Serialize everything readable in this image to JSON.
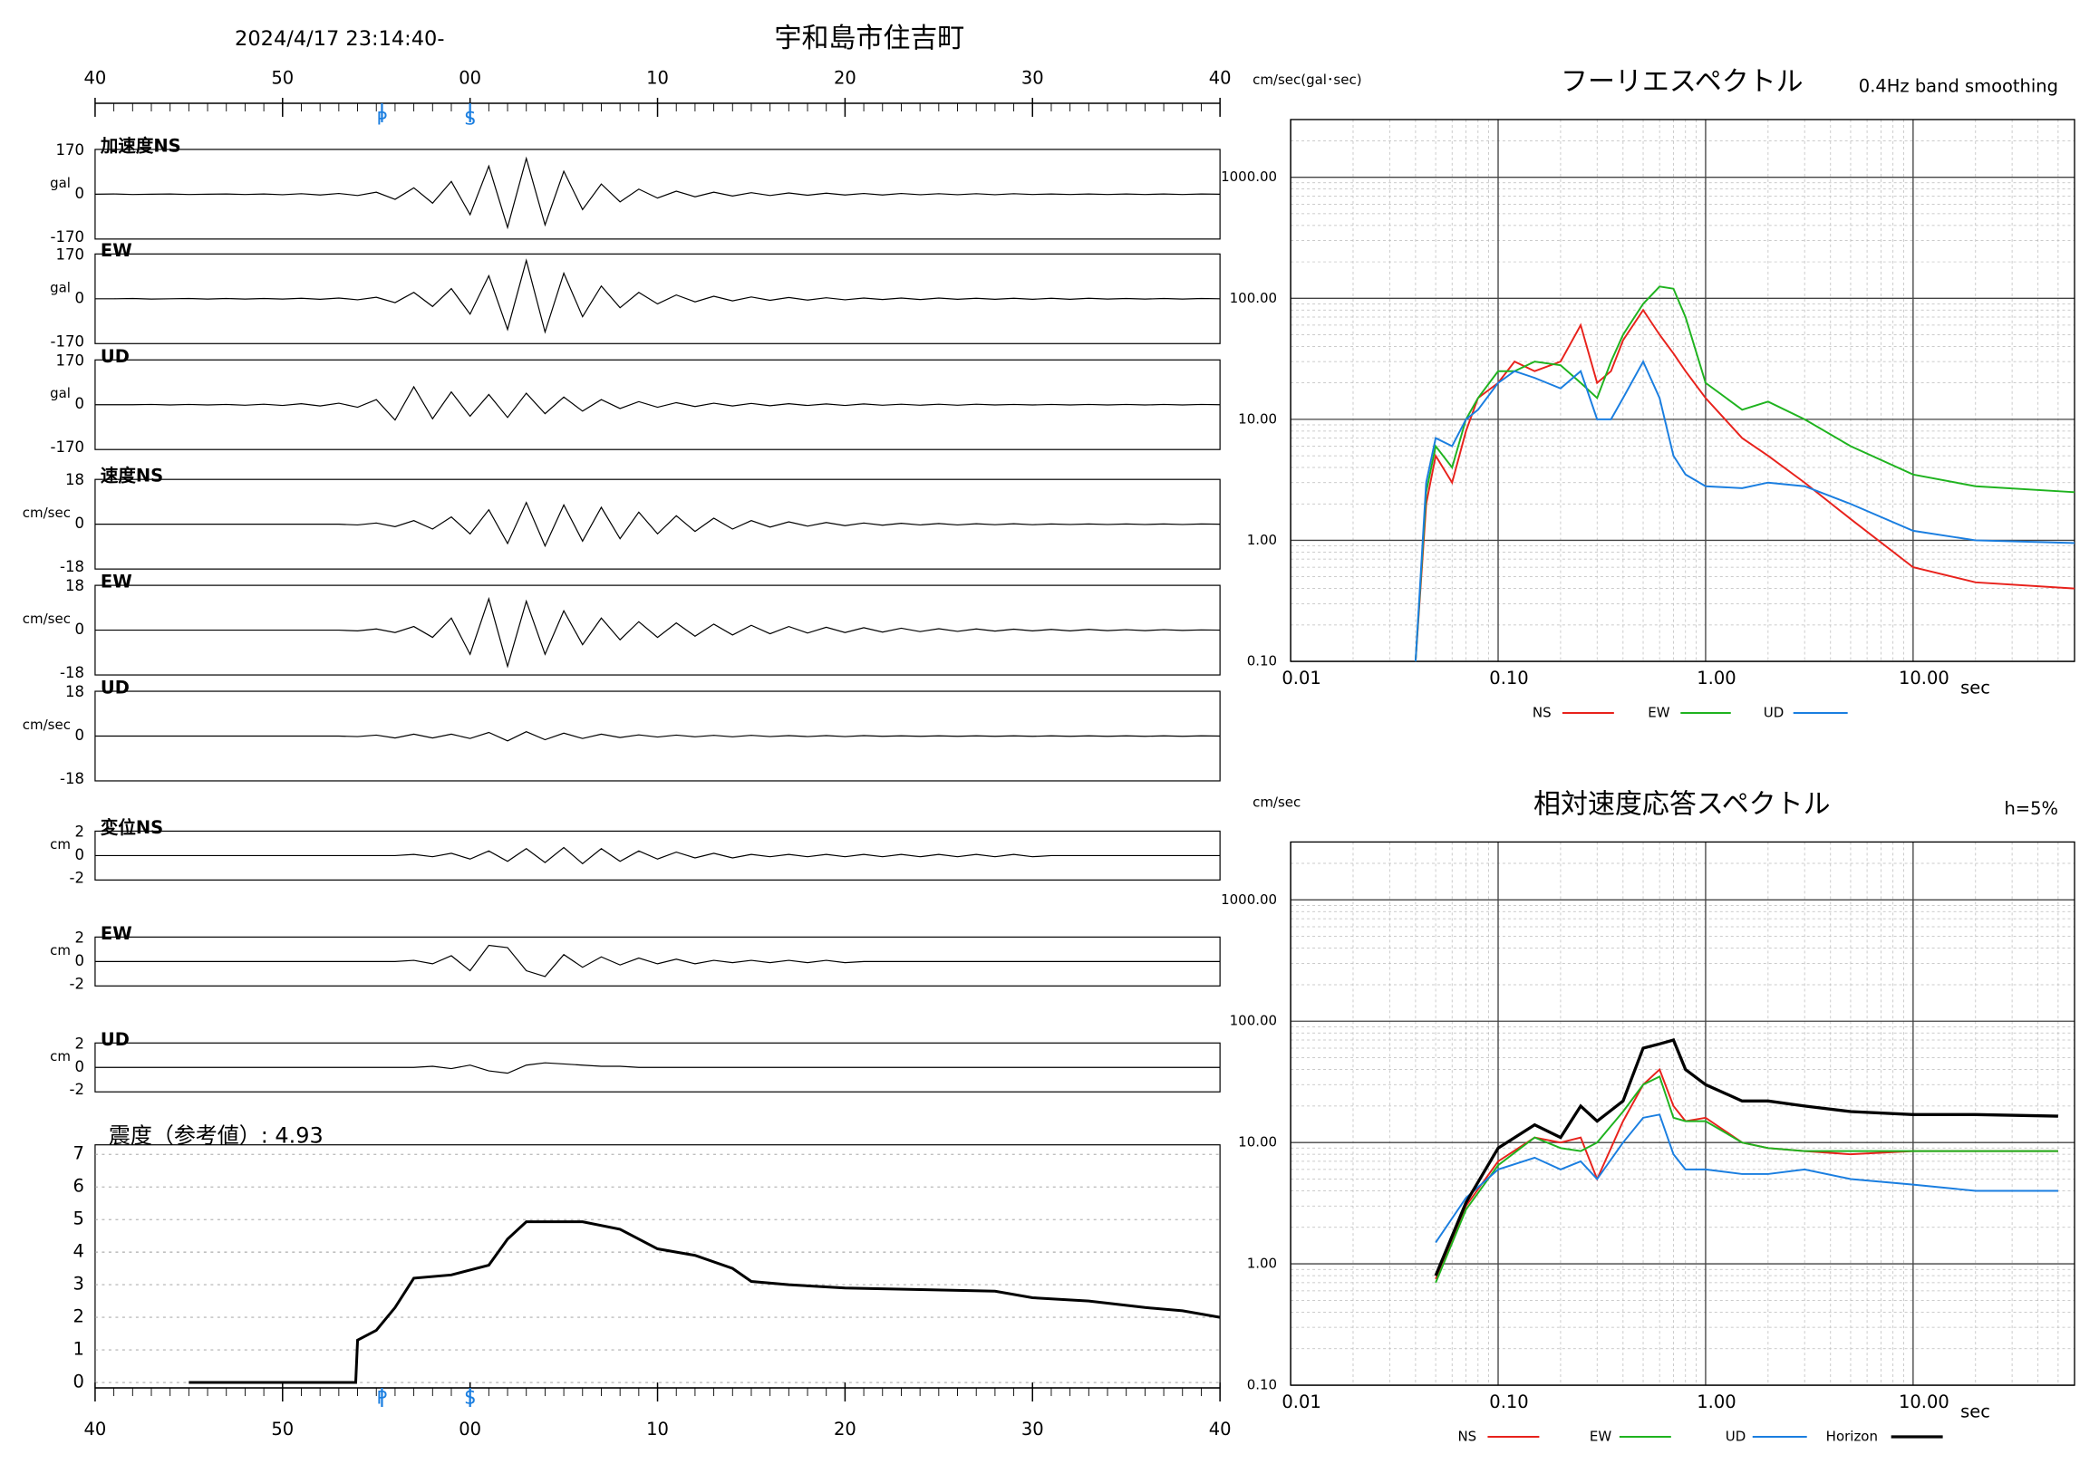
{
  "chart_data": [
    {
      "type": "waveform",
      "title": "宇和島市住吉町",
      "subtitle": "2024/4/17 23:14:40-",
      "xlim": [
        0,
        60
      ],
      "xticks": [
        {
          "value": 0,
          "label": "40"
        },
        {
          "value": 10,
          "label": "50"
        },
        {
          "value": 20,
          "label": "00"
        },
        {
          "value": 30,
          "label": "10"
        },
        {
          "value": 40,
          "label": "20"
        },
        {
          "value": 50,
          "label": "30"
        },
        {
          "value": 60,
          "label": "40"
        }
      ],
      "markers": [
        {
          "label": "P",
          "value": 15.3
        },
        {
          "label": "S",
          "value": 20
        }
      ],
      "x": [
        0,
        1,
        2,
        3,
        4,
        5,
        6,
        7,
        8,
        9,
        10,
        11,
        12,
        13,
        14,
        15,
        16,
        17,
        18,
        19,
        20,
        21,
        22,
        23,
        24,
        25,
        26,
        27,
        28,
        29,
        30,
        31,
        32,
        33,
        34,
        35,
        36,
        37,
        38,
        39,
        40,
        41,
        42,
        43,
        44,
        45,
        46,
        47,
        48,
        49,
        50,
        51,
        52,
        53,
        54,
        55,
        56,
        57,
        58,
        59,
        60
      ],
      "panels": [
        {
          "name": "加速度NS",
          "unit": "gal",
          "ylim": [
            -170,
            170
          ],
          "yticks": [
            -170,
            0,
            170
          ],
          "values": [
            0,
            1,
            -1,
            0,
            1,
            -1,
            0,
            1,
            -1,
            1,
            -2,
            2,
            -3,
            3,
            -5,
            8,
            -20,
            25,
            -35,
            50,
            -80,
            110,
            -130,
            140,
            -120,
            90,
            -60,
            40,
            -30,
            20,
            -15,
            12,
            -10,
            8,
            -7,
            6,
            -5,
            5,
            -4,
            4,
            -3,
            3,
            -3,
            3,
            -2,
            2,
            -2,
            2,
            -2,
            2,
            -1,
            1,
            -1,
            1,
            -1,
            1,
            -1,
            1,
            -1,
            1,
            0
          ]
        },
        {
          "name": "EW",
          "unit": "gal",
          "ylim": [
            -170,
            170
          ],
          "yticks": [
            -170,
            0,
            170
          ],
          "values": [
            0,
            0,
            1,
            -1,
            0,
            1,
            -1,
            1,
            -1,
            1,
            -1,
            2,
            -2,
            3,
            -4,
            6,
            -15,
            25,
            -30,
            40,
            -60,
            90,
            -120,
            150,
            -130,
            100,
            -70,
            50,
            -35,
            25,
            -20,
            15,
            -12,
            10,
            -8,
            7,
            -6,
            5,
            -5,
            4,
            -4,
            3,
            -3,
            3,
            -3,
            3,
            -2,
            2,
            -2,
            2,
            -2,
            2,
            -2,
            2,
            -1,
            1,
            -1,
            1,
            -1,
            1,
            0
          ]
        },
        {
          "name": "UD",
          "unit": "gal",
          "ylim": [
            -170,
            170
          ],
          "yticks": [
            -170,
            0,
            170
          ],
          "values": [
            0,
            0,
            0,
            1,
            -1,
            1,
            -1,
            1,
            -2,
            2,
            -3,
            4,
            -5,
            6,
            -10,
            20,
            -60,
            70,
            -55,
            50,
            -45,
            40,
            -50,
            45,
            -35,
            30,
            -25,
            20,
            -15,
            12,
            -10,
            8,
            -7,
            6,
            -5,
            5,
            -4,
            4,
            -3,
            3,
            -3,
            3,
            -2,
            2,
            -2,
            2,
            -2,
            2,
            -1,
            1,
            -1,
            1,
            -1,
            1,
            -1,
            1,
            -1,
            1,
            -1,
            1,
            0
          ]
        },
        {
          "name": "速度NS",
          "unit": "cm/sec",
          "ylim": [
            -18,
            18
          ],
          "yticks": [
            -18,
            0,
            18
          ],
          "values": [
            0,
            0,
            0,
            0,
            0,
            0,
            0,
            0,
            0,
            0,
            0,
            0,
            0,
            0,
            -0.3,
            0.5,
            -1,
            1.5,
            -2,
            3,
            -4,
            6,
            -8,
            9,
            -9,
            8,
            -7,
            7,
            -6,
            5,
            -4,
            3.5,
            -3,
            2.5,
            -2,
            1.5,
            -1.2,
            1,
            -0.8,
            0.7,
            -0.6,
            0.5,
            -0.4,
            0.4,
            -0.3,
            0.3,
            -0.3,
            0.2,
            -0.2,
            0.2,
            -0.2,
            0.1,
            -0.1,
            0.1,
            -0.1,
            0.1,
            -0.1,
            0.1,
            -0.1,
            0.1,
            0
          ]
        },
        {
          "name": "EW",
          "unit": "cm/sec",
          "ylim": [
            -18,
            18
          ],
          "yticks": [
            -18,
            0,
            18
          ],
          "values": [
            0,
            0,
            0,
            0,
            0,
            0,
            0,
            0,
            0,
            0,
            0,
            0,
            0,
            0,
            -0.3,
            0.5,
            -1,
            1.5,
            -3,
            5,
            -10,
            13,
            -15,
            12,
            -10,
            8,
            -6,
            5,
            -4,
            3.5,
            -3,
            3,
            -2.5,
            2.5,
            -2,
            2,
            -1.5,
            1.5,
            -1.2,
            1.2,
            -1,
            1,
            -0.8,
            0.8,
            -0.6,
            0.6,
            -0.5,
            0.5,
            -0.4,
            0.4,
            -0.3,
            0.3,
            -0.3,
            0.3,
            -0.2,
            0.2,
            -0.2,
            0.2,
            -0.1,
            0.1,
            0
          ]
        },
        {
          "name": "UD",
          "unit": "cm/sec",
          "ylim": [
            -18,
            18
          ],
          "yticks": [
            -18,
            0,
            18
          ],
          "values": [
            0,
            0,
            0,
            0,
            0,
            0,
            0,
            0,
            0,
            0,
            0,
            0,
            0,
            0,
            -0.2,
            0.4,
            -0.8,
            0.8,
            -0.8,
            0.8,
            -1,
            1.5,
            -2,
            1.8,
            -1.5,
            1.2,
            -1,
            0.8,
            -0.6,
            0.5,
            -0.4,
            0.4,
            -0.3,
            0.3,
            -0.3,
            0.3,
            -0.2,
            0.2,
            -0.2,
            0.2,
            -0.2,
            0.2,
            -0.1,
            0.1,
            -0.1,
            0.1,
            -0.1,
            0.1,
            -0.1,
            0.1,
            -0.1,
            0.1,
            -0.1,
            0.1,
            -0.1,
            0.1,
            -0.1,
            0.1,
            -0.1,
            0.1,
            0
          ]
        },
        {
          "name": "変位NS",
          "unit": "cm",
          "ylim": [
            -2,
            2
          ],
          "yticks": [
            -2,
            0,
            2
          ],
          "values": [
            0,
            0,
            0,
            0,
            0,
            0,
            0,
            0,
            0,
            0,
            0,
            0,
            0,
            0,
            0,
            0,
            0,
            0.1,
            -0.1,
            0.2,
            -0.3,
            0.4,
            -0.5,
            0.6,
            -0.6,
            0.7,
            -0.7,
            0.6,
            -0.5,
            0.4,
            -0.3,
            0.3,
            -0.2,
            0.2,
            -0.2,
            0.1,
            -0.1,
            0.1,
            -0.1,
            0.1,
            -0.1,
            0.1,
            -0.1,
            0.1,
            -0.1,
            0.1,
            -0.1,
            0.1,
            -0.1,
            0.1,
            -0.1,
            0,
            0,
            0,
            0,
            0,
            0,
            0,
            0,
            0,
            0
          ]
        },
        {
          "name": "EW",
          "unit": "cm",
          "ylim": [
            -2,
            2
          ],
          "yticks": [
            -2,
            0,
            2
          ],
          "values": [
            0,
            0,
            0,
            0,
            0,
            0,
            0,
            0,
            0,
            0,
            0,
            0,
            0,
            0,
            0,
            0,
            0,
            0.1,
            -0.2,
            0.5,
            -0.8,
            1.4,
            1.2,
            -0.8,
            -1.3,
            0.6,
            -0.5,
            0.4,
            -0.3,
            0.3,
            -0.2,
            0.2,
            -0.2,
            0.1,
            -0.1,
            0.1,
            -0.1,
            0.1,
            -0.1,
            0.1,
            -0.1,
            0,
            0,
            0,
            0,
            0,
            0,
            0,
            0,
            0,
            0,
            0,
            0,
            0,
            0,
            0,
            0,
            0,
            0,
            0,
            0
          ]
        },
        {
          "name": "UD",
          "unit": "cm",
          "ylim": [
            -2,
            2
          ],
          "yticks": [
            -2,
            0,
            2
          ],
          "values": [
            0,
            0,
            0,
            0,
            0,
            0,
            0,
            0,
            0,
            0,
            0,
            0,
            0,
            0,
            0,
            0,
            0,
            0,
            0.1,
            -0.1,
            0.2,
            -0.3,
            -0.5,
            0.2,
            0.4,
            0.3,
            0.2,
            0.1,
            0.1,
            0,
            0,
            0,
            0,
            0,
            0,
            0,
            0,
            0,
            0,
            0,
            0,
            0,
            0,
            0,
            0,
            0,
            0,
            0,
            0,
            0,
            0,
            0,
            0,
            0,
            0,
            0,
            0,
            0,
            0,
            0,
            0
          ]
        }
      ]
    },
    {
      "type": "intensity",
      "title": "震度（参考値）: 4.93",
      "ylim": [
        0,
        7
      ],
      "yticks": [
        0,
        1,
        2,
        3,
        4,
        5,
        6,
        7
      ],
      "grid": true,
      "color": "#000000",
      "x": [
        5,
        13.9,
        14,
        15,
        16,
        17,
        19,
        21,
        22,
        23,
        26,
        28,
        30,
        32,
        34,
        35,
        37,
        40,
        44,
        48,
        50,
        53,
        56,
        58,
        60
      ],
      "values": [
        0,
        0,
        1.3,
        1.6,
        2.3,
        3.2,
        3.3,
        3.6,
        4.4,
        4.93,
        4.93,
        4.7,
        4.1,
        3.9,
        3.5,
        3.1,
        3.0,
        2.9,
        2.85,
        2.8,
        2.6,
        2.5,
        2.3,
        2.2,
        2.0
      ]
    },
    {
      "type": "spectrum",
      "title": "フーリエスペクトル",
      "subtitle": "0.4Hz band smoothing",
      "ylabel": "cm/sec(gal･sec)",
      "xlabel": "sec",
      "log_x": true,
      "log_y": true,
      "grid": true,
      "xlim": [
        0.01,
        60
      ],
      "ylim": [
        0.1,
        3000
      ],
      "xticks": [
        0.01,
        {
          "value": 0.1,
          "label": "0.10"
        },
        {
          "value": 1,
          "label": "1.00"
        },
        {
          "value": 10,
          "label": "10.00"
        }
      ],
      "yticks": [
        {
          "value": 0.1,
          "label": "0.10"
        },
        {
          "value": 1,
          "label": "1.00"
        },
        {
          "value": 10,
          "label": "10.00"
        },
        {
          "value": 100,
          "label": "100.00"
        },
        {
          "value": 1000,
          "label": "1000.00"
        }
      ],
      "x": [
        0.04,
        0.045,
        0.05,
        0.06,
        0.07,
        0.08,
        0.1,
        0.12,
        0.15,
        0.2,
        0.25,
        0.3,
        0.35,
        0.4,
        0.5,
        0.6,
        0.7,
        0.8,
        1,
        1.5,
        2,
        3,
        5,
        10,
        20,
        60
      ],
      "series": [
        {
          "name": "NS",
          "color": "#e8221c",
          "values": [
            0.1,
            2,
            5,
            3,
            8,
            15,
            20,
            30,
            25,
            30,
            60,
            20,
            25,
            45,
            80,
            50,
            35,
            25,
            15,
            7,
            5,
            3,
            1.5,
            0.6,
            0.45,
            0.4
          ]
        },
        {
          "name": "EW",
          "color": "#1fb31f",
          "values": [
            0.1,
            2.5,
            6,
            4,
            10,
            15,
            25,
            25,
            30,
            28,
            20,
            15,
            30,
            50,
            90,
            125,
            120,
            70,
            20,
            12,
            14,
            10,
            6,
            3.5,
            2.8,
            2.5
          ]
        },
        {
          "name": "UD",
          "color": "#1a7ee0",
          "values": [
            0.1,
            3,
            7,
            6,
            10,
            12,
            20,
            25,
            22,
            18,
            25,
            10,
            10,
            15,
            30,
            15,
            5,
            3.5,
            2.8,
            2.7,
            3,
            2.8,
            2,
            1.2,
            1,
            0.95
          ]
        }
      ]
    },
    {
      "type": "spectrum",
      "title": "相対速度応答スペクトル",
      "subtitle": "h=5%",
      "ylabel": "cm/sec",
      "xlabel": "sec",
      "log_x": true,
      "log_y": true,
      "grid": true,
      "xlim": [
        0.01,
        60
      ],
      "ylim": [
        0.1,
        3000
      ],
      "xticks": [
        0.01,
        {
          "value": 0.1,
          "label": "0.10"
        },
        {
          "value": 1,
          "label": "1.00"
        },
        {
          "value": 10,
          "label": "10.00"
        }
      ],
      "yticks": [
        {
          "value": 0.1,
          "label": "0.10"
        },
        {
          "value": 1,
          "label": "1.00"
        },
        {
          "value": 10,
          "label": "10.00"
        },
        {
          "value": 100,
          "label": "100.00"
        },
        {
          "value": 1000,
          "label": "1000.00"
        }
      ],
      "x": [
        0.05,
        0.07,
        0.1,
        0.15,
        0.2,
        0.25,
        0.3,
        0.4,
        0.5,
        0.6,
        0.7,
        0.8,
        1,
        1.5,
        2,
        3,
        5,
        10,
        20,
        50
      ],
      "series": [
        {
          "name": "NS",
          "color": "#e8221c",
          "values": [
            0.75,
            3,
            7,
            11,
            10,
            11,
            5,
            15,
            30,
            40,
            20,
            15,
            16,
            10,
            9,
            8.5,
            8,
            8.5,
            8.5,
            8.5
          ]
        },
        {
          "name": "EW",
          "color": "#1fb31f",
          "values": [
            0.7,
            2.8,
            6.5,
            11,
            9,
            8.5,
            10,
            18,
            30,
            35,
            16,
            15,
            15,
            10,
            9,
            8.5,
            8.5,
            8.5,
            8.5,
            8.5
          ]
        },
        {
          "name": "UD",
          "color": "#1a7ee0",
          "values": [
            1.5,
            3.5,
            6,
            7.5,
            6,
            7,
            5,
            10,
            16,
            17,
            8,
            6,
            6,
            5.5,
            5.5,
            6,
            5,
            4.5,
            4,
            4
          ]
        },
        {
          "name": "Horizon",
          "color": "#000000",
          "values": [
            0.8,
            3.2,
            9,
            14,
            11,
            20,
            15,
            22,
            60,
            65,
            70,
            40,
            30,
            22,
            22,
            20,
            18,
            17,
            17,
            16.5
          ]
        }
      ]
    }
  ]
}
